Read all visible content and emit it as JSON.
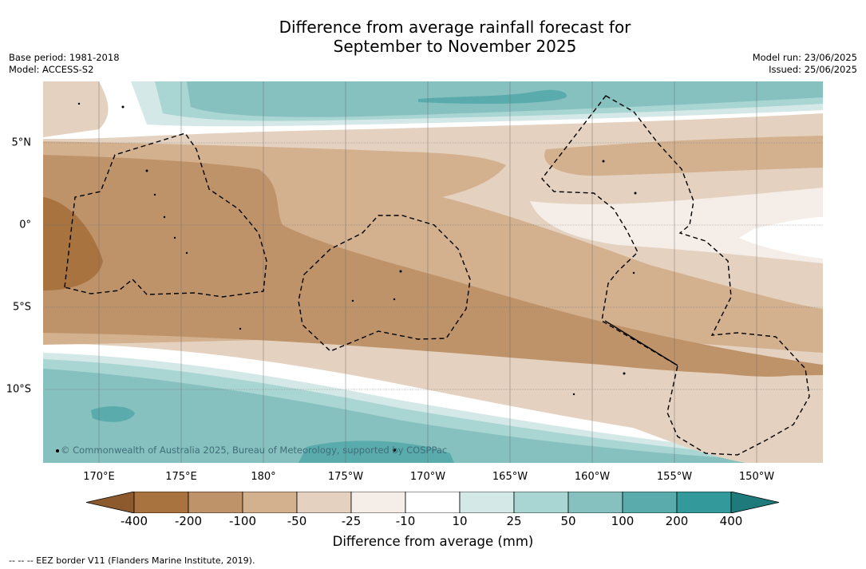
{
  "title_line1": "Difference from average rainfall forecast for",
  "title_line2": "September to November 2025",
  "base_period": "Base period: 1981-2018",
  "model": "Model: ACCESS-S2",
  "model_run": "Model run: 23/06/2025",
  "issued": "Issued: 25/06/2025",
  "copyright": "© Commonwealth of Australia 2025, Bureau of Meteorology, supported by COSPPac",
  "lat_labels": [
    "5°N",
    "0°",
    "5°S",
    "10°S"
  ],
  "lon_labels": [
    "170°E",
    "175°E",
    "180°",
    "175°W",
    "170°W",
    "165°W",
    "160°W",
    "155°W",
    "150°W"
  ],
  "legend": {
    "title": "Difference from average (mm)",
    "ticks": [
      "-400",
      "-200",
      "-100",
      "-50",
      "-25",
      "-10",
      "10",
      "25",
      "50",
      "100",
      "200",
      "400"
    ],
    "colors": [
      "#8c5a2c",
      "#a8733f",
      "#bf936a",
      "#d3b08e",
      "#e4d1bf",
      "#f5ede7",
      "#ffffff",
      "#d4e9e7",
      "#a9d5d2",
      "#86c0bf",
      "#5aabac",
      "#33999a",
      "#1f7b7b"
    ]
  },
  "footnote": "--  --  -- EEZ border V11 (Flanders Marine Institute, 2019)."
}
